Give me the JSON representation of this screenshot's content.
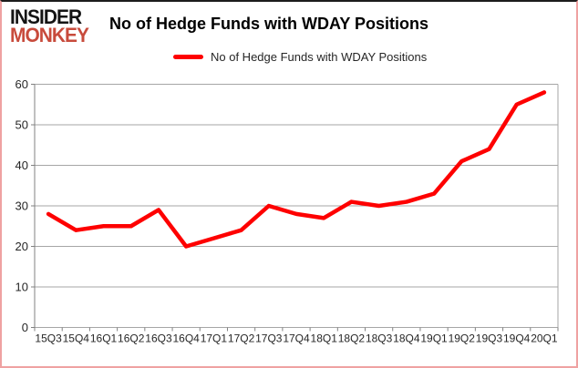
{
  "branding": {
    "logo_line1": "INSIDER",
    "logo_line2": "MONKEY"
  },
  "header": {
    "title": "No of Hedge Funds with WDAY Positions"
  },
  "legend": {
    "label": "No of Hedge Funds with WDAY Positions",
    "line_color": "#fe0000"
  },
  "colors": {
    "line": "#fe0000",
    "gridline": "#a6a6a6",
    "axis": "#808080",
    "logo_top": "#141414",
    "logo_bottom": "#c84b3c",
    "frame_border": "#efa2a2"
  },
  "chart_data": {
    "type": "line",
    "title": "No of Hedge Funds with WDAY Positions",
    "categories": [
      "15Q3",
      "15Q4",
      "16Q1",
      "16Q2",
      "16Q3",
      "16Q4",
      "17Q1",
      "17Q2",
      "17Q3",
      "17Q4",
      "18Q1",
      "18Q2",
      "18Q3",
      "18Q4",
      "19Q1",
      "19Q2",
      "19Q3",
      "19Q4",
      "20Q1"
    ],
    "series": [
      {
        "name": "No of Hedge Funds with WDAY Positions",
        "color": "#fe0000",
        "values": [
          28,
          24,
          25,
          25,
          29,
          20,
          22,
          24,
          30,
          28,
          27,
          31,
          30,
          31,
          33,
          41,
          44,
          55,
          58
        ]
      }
    ],
    "xlabel": "",
    "ylabel": "",
    "ylim": [
      0,
      60
    ],
    "yticks": [
      0,
      10,
      20,
      30,
      40,
      50,
      60
    ],
    "grid": "horizontal",
    "legend_position": "top-center"
  }
}
